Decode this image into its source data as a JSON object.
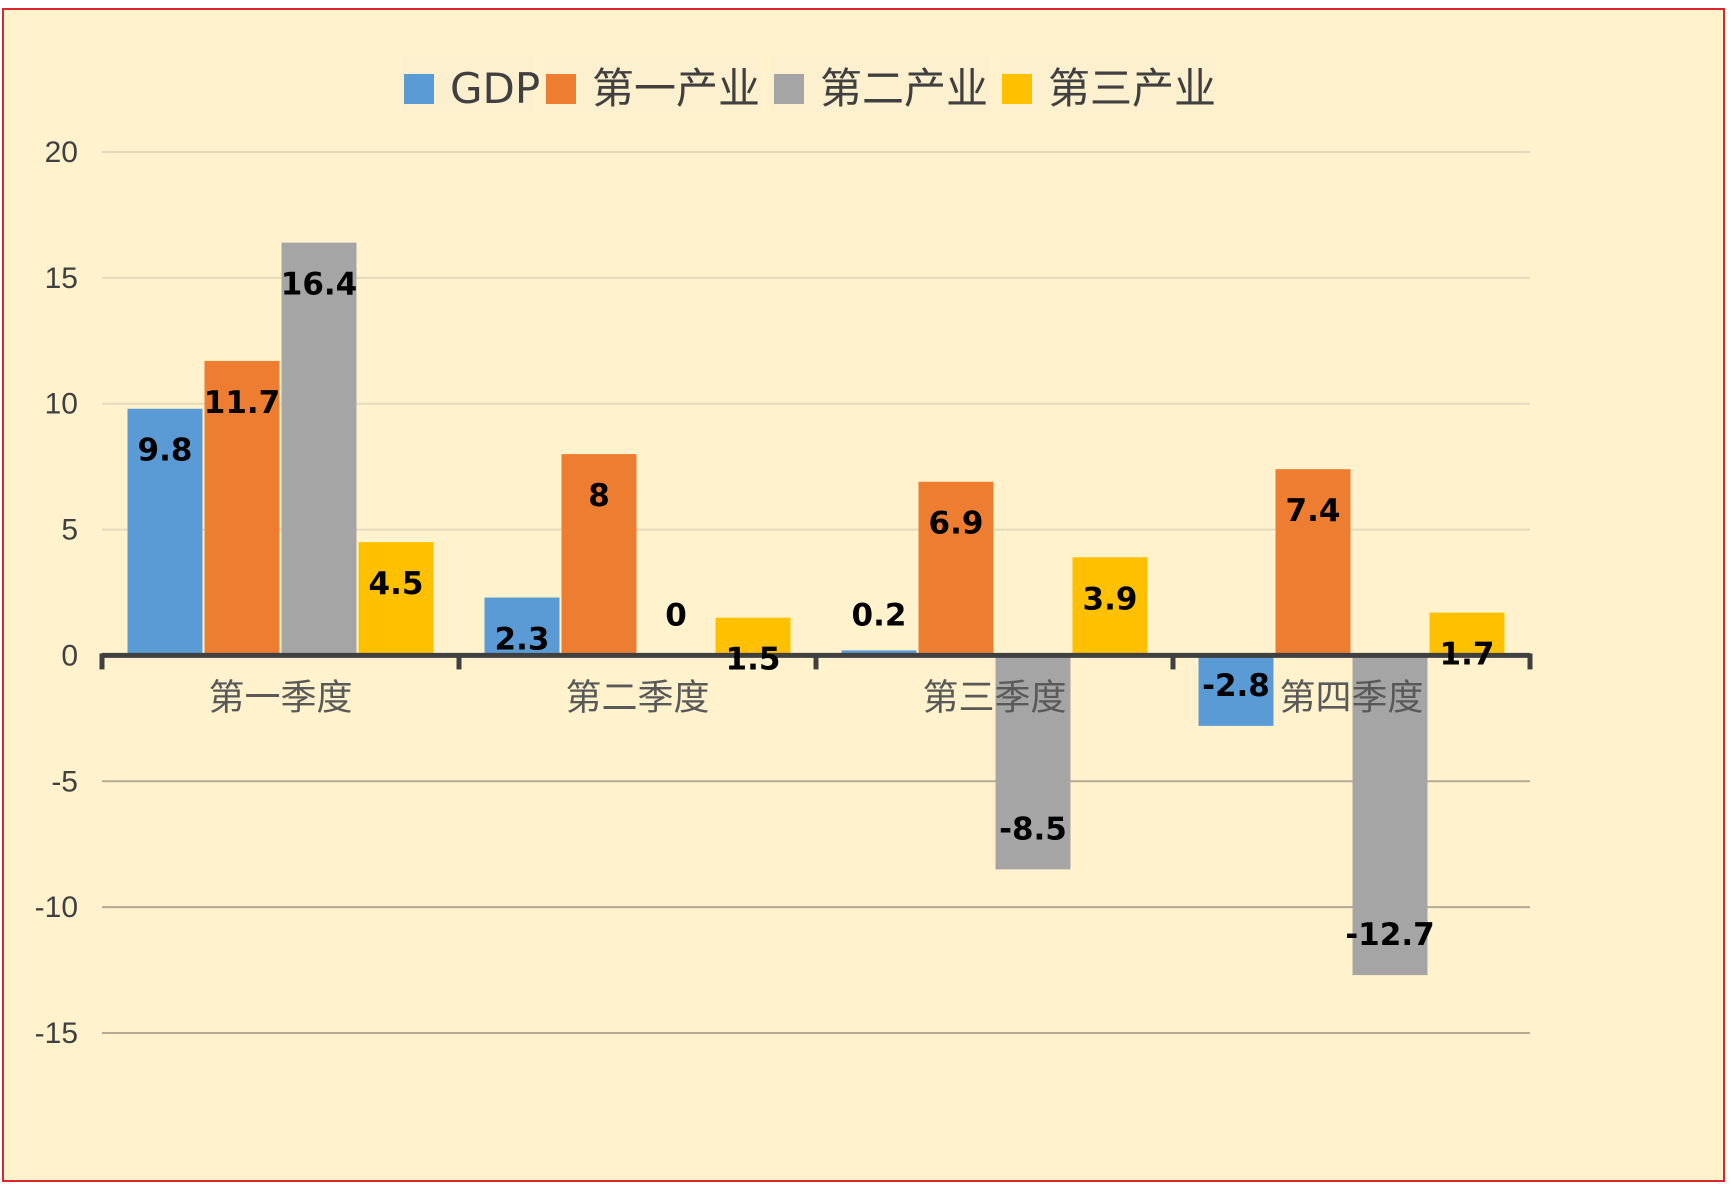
{
  "chart_data": {
    "type": "bar",
    "title": "",
    "xlabel": "",
    "ylabel": "",
    "categories": [
      "第一季度",
      "第二季度",
      "第三季度",
      "第四季度"
    ],
    "series": [
      {
        "name": "GDP",
        "color": "#5b9bd5",
        "values": [
          9.8,
          2.3,
          0.2,
          -2.8
        ],
        "labels": [
          "9.8",
          "2.3",
          "0.2",
          "-2.8"
        ]
      },
      {
        "name": "第一产业",
        "color": "#ed7d31",
        "values": [
          11.7,
          8,
          6.9,
          7.4
        ],
        "labels": [
          "11.7",
          "8",
          "6.9",
          "7.4"
        ]
      },
      {
        "name": "第二产业",
        "color": "#a5a5a5",
        "values": [
          16.4,
          0,
          -8.5,
          -12.7
        ],
        "labels": [
          "16.4",
          "0",
          "-8.5",
          "-12.7"
        ]
      },
      {
        "name": "第三产业",
        "color": "#ffc000",
        "values": [
          4.5,
          1.5,
          3.9,
          1.7
        ],
        "labels": [
          "4.5",
          "1.5",
          "3.9",
          "1.7"
        ]
      }
    ],
    "ylim": [
      -15,
      20
    ],
    "yticks": [
      20,
      15,
      10,
      5,
      0,
      -5,
      -10,
      -15
    ],
    "ytick_labels": [
      "20",
      "15",
      "10",
      "5",
      "0",
      "-5",
      "-10",
      "-15"
    ],
    "grid": true,
    "legend_position": "top-center",
    "background_color": "#fff2cc",
    "border_color": "#d9272e"
  }
}
